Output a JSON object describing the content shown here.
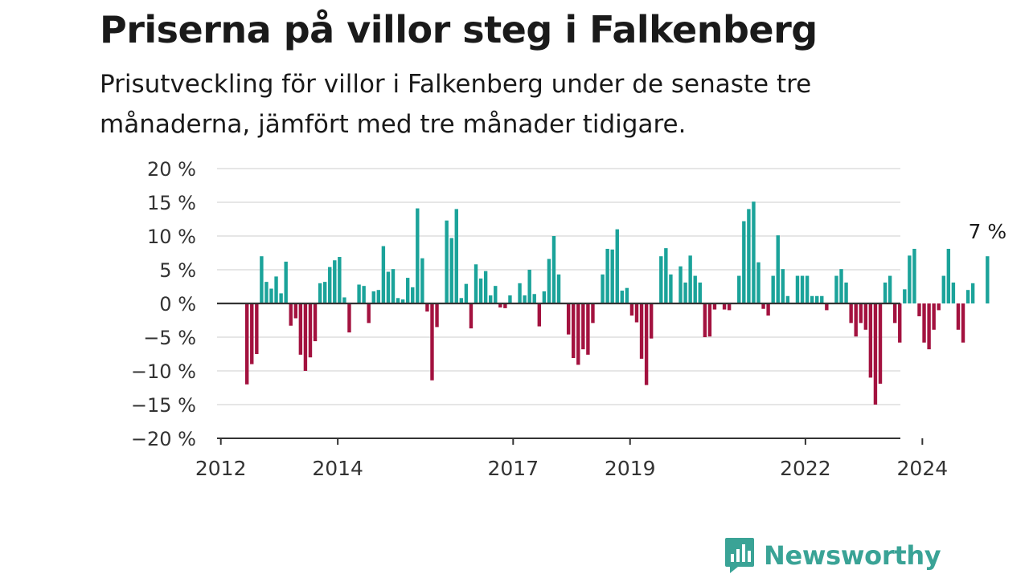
{
  "header": {
    "title": "Priserna på villor steg i Falkenberg",
    "subtitle": "Prisutveckling för villor i Falkenberg under de senaste tre månaderna, jämfört med tre månader tidigare."
  },
  "brand": {
    "name": "Newsworthy",
    "icon": "newsworthy-logo-icon",
    "color": "#3aa396"
  },
  "chart_data": {
    "type": "bar",
    "title": "Priserna på villor steg i Falkenberg",
    "subtitle": "Prisutveckling för villor i Falkenberg under de senaste tre månaderna, jämfört med tre månader tidigare.",
    "xlabel": "",
    "ylabel": "",
    "ylim": [
      -20,
      20
    ],
    "ytick_labels": [
      "20 %",
      "15 %",
      "10 %",
      "5 %",
      "0 %",
      "−5 %",
      "−10 %",
      "−15 %",
      "−20 %"
    ],
    "x_ticks": [
      "2012",
      "2014",
      "2017",
      "2019",
      "2022",
      "2024"
    ],
    "grid": "horizontal",
    "colors": {
      "positive": "#1ba39a",
      "negative": "#a3123f",
      "zero_line": "#333333",
      "grid": "#dddddd"
    },
    "annotation": {
      "text": "7 %",
      "target": "last bar"
    },
    "x_start": "2012-06",
    "values": [
      -12,
      -9,
      -7.5,
      7,
      3.2,
      2.2,
      4,
      1.5,
      6.2,
      -3.3,
      -2.2,
      -7.6,
      -10,
      -8,
      -5.6,
      3,
      3.2,
      5.4,
      6.4,
      6.9,
      0.9,
      -4.3,
      0,
      2.8,
      2.6,
      -2.9,
      1.8,
      2,
      8.5,
      4.7,
      5.1,
      0.8,
      0.6,
      3.8,
      2.4,
      14.1,
      6.7,
      -1.2,
      -11.4,
      -3.5,
      0,
      12.3,
      9.7,
      14,
      0.8,
      2.9,
      -3.7,
      5.8,
      3.7,
      4.8,
      1.2,
      2.6,
      -0.6,
      -0.7,
      1.2,
      0,
      3,
      1.2,
      5,
      1.4,
      -3.4,
      1.8,
      6.6,
      10,
      4.3,
      0,
      -4.6,
      -8.1,
      -9.1,
      -6.8,
      -7.6,
      -2.9,
      0,
      4.3,
      8.1,
      8,
      11,
      1.9,
      2.3,
      -1.8,
      -2.8,
      -8.2,
      -12.1,
      -5.2,
      0,
      7,
      8.2,
      4.3,
      0,
      5.5,
      3.1,
      7.1,
      4.1,
      3.1,
      -5,
      -4.9,
      -0.9,
      0,
      -0.9,
      -1,
      0,
      4.1,
      12.2,
      14,
      15.1,
      6.1,
      -0.8,
      -1.8,
      4.1,
      10.1,
      5.1,
      1.1,
      0,
      4.1,
      4.1,
      4.1,
      1.1,
      1.1,
      1.1,
      -1,
      0,
      4.1,
      5.1,
      3.1,
      -2.9,
      -4.9,
      -2.9,
      -3.9,
      -11,
      -15,
      -11.9,
      3.1,
      4.1,
      -2.9,
      -5.8,
      2.1,
      7.1,
      8.1,
      -1.9,
      -5.8,
      -6.8,
      -3.9,
      -1,
      4.1,
      8.1,
      3.1,
      -3.9,
      -5.8,
      2,
      3,
      0,
      0,
      7
    ]
  }
}
